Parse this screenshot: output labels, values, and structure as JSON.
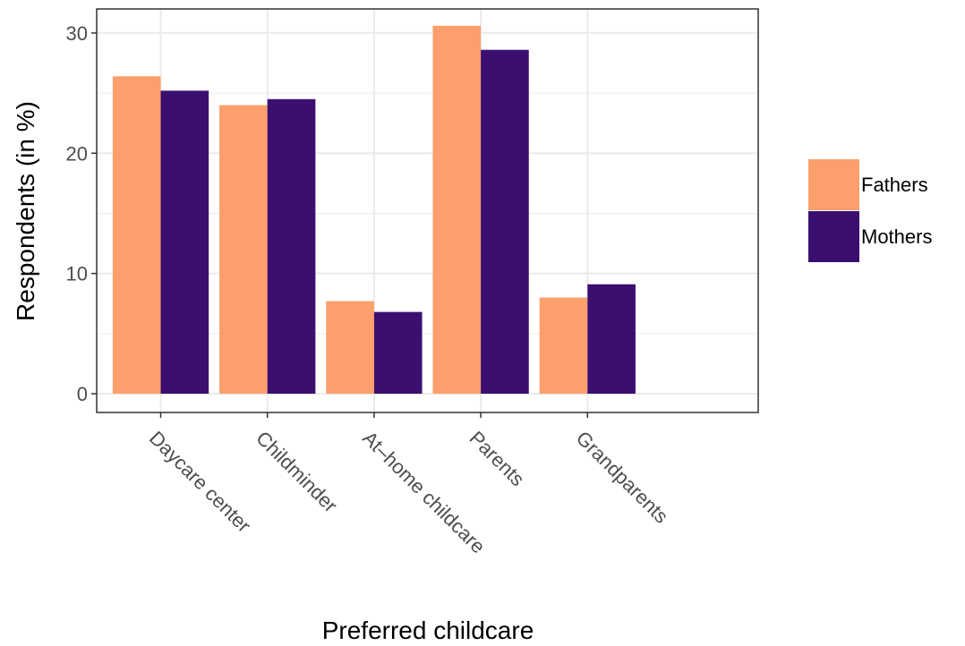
{
  "chart_data": {
    "type": "bar",
    "x_label": "Preferred childcare",
    "y_label": "Respondents (in %)",
    "categories": [
      "Daycare center",
      "Childminder",
      "At–home childcare",
      "Parents",
      "Grandparents"
    ],
    "series": [
      {
        "name": "Fathers",
        "color": "#fc9f6d",
        "values": [
          26.4,
          24.0,
          7.7,
          30.6,
          8.0
        ]
      },
      {
        "name": "Mothers",
        "color": "#3b0f6f",
        "values": [
          25.2,
          24.5,
          6.8,
          28.6,
          9.1
        ]
      }
    ],
    "ylim": [
      -1.56,
      32.0
    ],
    "yticks": [
      0,
      10,
      20,
      30
    ],
    "grid": true,
    "legend": "right"
  }
}
